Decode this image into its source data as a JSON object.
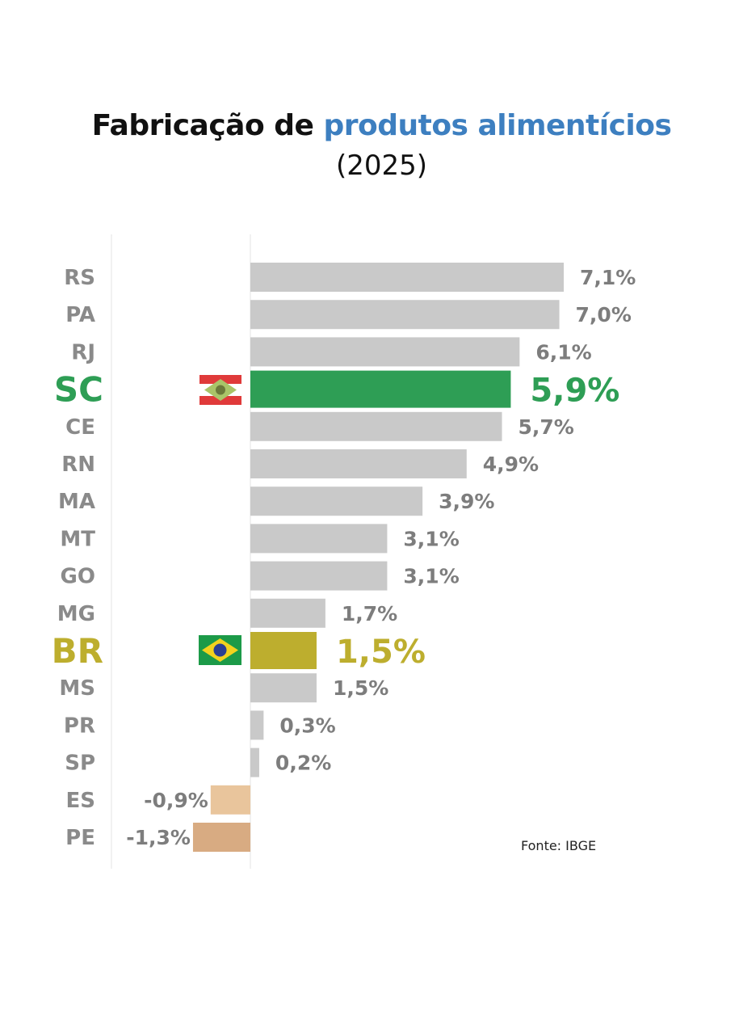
{
  "chart_data": {
    "type": "bar",
    "orientation": "horizontal",
    "title_part1": "Fabricação de ",
    "title_part2": "produtos alimentícios",
    "subtitle": "(2025)",
    "source": "Fonte: IBGE",
    "categories": [
      "RS",
      "PA",
      "RJ",
      "SC",
      "CE",
      "RN",
      "MA",
      "MT",
      "GO",
      "MG",
      "BR",
      "MS",
      "PR",
      "SP",
      "ES",
      "PE"
    ],
    "values": [
      7.1,
      7.0,
      6.1,
      5.9,
      5.7,
      4.9,
      3.9,
      3.1,
      3.1,
      1.7,
      1.5,
      1.5,
      0.3,
      0.2,
      -0.9,
      -1.3
    ],
    "value_labels": [
      "7,1%",
      "7,0%",
      "6,1%",
      "5,9%",
      "5,7%",
      "4,9%",
      "3,9%",
      "3,1%",
      "3,1%",
      "1,7%",
      "1,5%",
      "1,5%",
      "0,3%",
      "0,2%",
      "-0,9%",
      "-1,3%"
    ],
    "highlights": {
      "SC": "#2e9e55",
      "BR": "#bdae2e"
    },
    "colors": {
      "default": "#c9c9c9",
      "ES": "#e9c59c",
      "PE": "#d8ab82"
    },
    "xlim": [
      -1.3,
      7.1
    ]
  }
}
